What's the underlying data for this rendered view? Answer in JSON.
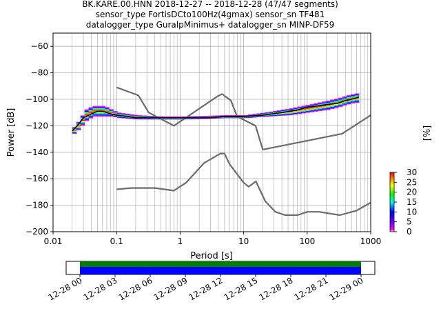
{
  "title": {
    "line1": "BK.KARE.00.HNN   2018-12-27 -- 2018-12-28  (47/47 segments)",
    "line2": "sensor_type FortisDCto100Hz(4gmax) sensor_sn TF481",
    "line3": "datalogger_type GuralpMinimus+ datalogger_sn MINP-DF59"
  },
  "colors": {
    "model_line": "#6b6b6b",
    "mean_line": "#000000",
    "grid": "#b0b0b0",
    "coverage_data": "#0000ff",
    "coverage_gaps": "#008000"
  },
  "chart_data": {
    "type": "heatmap",
    "subtype": "probabilistic power spectral density",
    "xlabel": "Period [s]",
    "ylabel": "Power [dB]",
    "xscale": "log",
    "xlim": [
      0.01,
      1000
    ],
    "ylim": [
      -200,
      -50
    ],
    "xticks": [
      0.01,
      0.1,
      1,
      10,
      100,
      1000
    ],
    "xtick_labels": [
      "0.01",
      "0.1",
      "1",
      "10",
      "100",
      "1000"
    ],
    "yticks": [
      -200,
      -180,
      -160,
      -140,
      -120,
      -100,
      -80,
      -60
    ],
    "ytick_labels": [
      "−200",
      "−180",
      "−160",
      "−140",
      "−120",
      "−100",
      "−80",
      "−60"
    ],
    "grid": true,
    "colorbar": {
      "label": "[%]",
      "range": [
        0,
        30
      ],
      "ticks": [
        "0",
        "5",
        "10",
        "15",
        "20",
        "25",
        "30"
      ],
      "colormap": "pqlx"
    },
    "mean_psd": [
      [
        0.02,
        -124
      ],
      [
        0.025,
        -119
      ],
      [
        0.03,
        -114
      ],
      [
        0.04,
        -111
      ],
      [
        0.05,
        -109
      ],
      [
        0.06,
        -109
      ],
      [
        0.08,
        -111
      ],
      [
        0.1,
        -112
      ],
      [
        0.15,
        -113
      ],
      [
        0.2,
        -114
      ],
      [
        0.3,
        -114
      ],
      [
        0.5,
        -114
      ],
      [
        1,
        -114
      ],
      [
        2,
        -114
      ],
      [
        3,
        -114
      ],
      [
        5,
        -113
      ],
      [
        10,
        -113
      ],
      [
        20,
        -112
      ],
      [
        40,
        -110
      ],
      [
        70,
        -108
      ],
      [
        100,
        -106
      ],
      [
        150,
        -105
      ],
      [
        200,
        -104
      ],
      [
        300,
        -103
      ],
      [
        400,
        -101
      ],
      [
        500,
        -100
      ],
      [
        600,
        -99
      ],
      [
        650,
        -98
      ]
    ],
    "psd_band": [
      [
        0.02,
        -126,
        -121
      ],
      [
        0.025,
        -122,
        -115
      ],
      [
        0.03,
        -117,
        -108
      ],
      [
        0.04,
        -113,
        -105
      ],
      [
        0.05,
        -113,
        -105
      ],
      [
        0.06,
        -113,
        -105
      ],
      [
        0.08,
        -113,
        -108
      ],
      [
        0.1,
        -114,
        -110
      ],
      [
        0.2,
        -115,
        -112
      ],
      [
        0.5,
        -115,
        -113
      ],
      [
        1,
        -115,
        -113
      ],
      [
        5,
        -114,
        -112
      ],
      [
        10,
        -114,
        -112
      ],
      [
        20,
        -113,
        -110
      ],
      [
        50,
        -112,
        -107
      ],
      [
        100,
        -110,
        -104
      ],
      [
        200,
        -108,
        -101
      ],
      [
        300,
        -106,
        -99
      ],
      [
        400,
        -104,
        -97
      ],
      [
        500,
        -103,
        -96
      ],
      [
        650,
        -102,
        -95
      ]
    ],
    "nhnm": [
      [
        0.1,
        -91
      ],
      [
        0.22,
        -97
      ],
      [
        0.32,
        -110
      ],
      [
        0.8,
        -120
      ],
      [
        3.8,
        -98
      ],
      [
        4.6,
        -96
      ],
      [
        6.3,
        -101
      ],
      [
        7.9,
        -113
      ],
      [
        15.4,
        -120
      ],
      [
        20,
        -138
      ],
      [
        354.8,
        -126
      ],
      [
        1000,
        -112
      ]
    ],
    "nlnm": [
      [
        0.1,
        -168
      ],
      [
        0.17,
        -167
      ],
      [
        0.4,
        -167
      ],
      [
        0.8,
        -169
      ],
      [
        1.24,
        -163
      ],
      [
        2.4,
        -148
      ],
      [
        4.3,
        -141
      ],
      [
        5,
        -141
      ],
      [
        6,
        -149
      ],
      [
        10,
        -163
      ],
      [
        12,
        -166
      ],
      [
        15.6,
        -162
      ],
      [
        21.9,
        -177
      ],
      [
        31.6,
        -185
      ],
      [
        45,
        -187.5
      ],
      [
        70,
        -187.5
      ],
      [
        101,
        -185
      ],
      [
        154,
        -185
      ],
      [
        328,
        -187.5
      ],
      [
        600,
        -184
      ],
      [
        1000,
        -178
      ]
    ],
    "time_axis": {
      "start": "2018-12-28 00:00",
      "end": "2018-12-29 00:00",
      "tick_labels": [
        "12-28 00",
        "12-28 03",
        "12-28 06",
        "12-28 09",
        "12-28 12",
        "12-28 15",
        "12-28 18",
        "12-28 21",
        "12-29 00"
      ],
      "coverage": [
        [
          "2018-12-28 00:00",
          "2018-12-29 00:00"
        ]
      ]
    }
  }
}
